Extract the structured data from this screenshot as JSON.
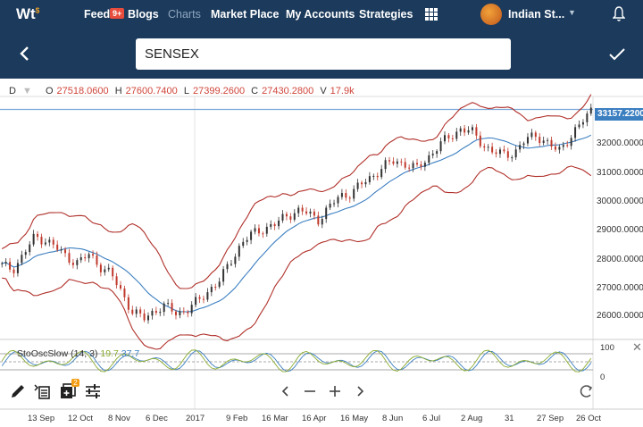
{
  "nav": {
    "logo": "Wt",
    "logo_sup": "$",
    "items": [
      "Feed",
      "Blogs",
      "Charts",
      "Market Place",
      "My Accounts",
      "Strategies"
    ],
    "feed_badge": "9+",
    "account_label": "Indian St...",
    "active": "Charts"
  },
  "search": {
    "value": "SENSEX"
  },
  "ohlc": {
    "interval": "D",
    "o_label": "O",
    "o": "27518.0600",
    "h_label": "H",
    "h": "27600.7400",
    "l_label": "L",
    "l": "27399.2600",
    "c_label": "C",
    "c": "27430.2800",
    "v_label": "V",
    "v": "17.9k"
  },
  "last_price": "33157.2200",
  "oscillator": {
    "name": "StoOscSlow (14, 3)",
    "k": "19.7",
    "d": "37.7",
    "y_ticks": [
      "100",
      "0"
    ]
  },
  "tool_badge": "2",
  "colors": {
    "nav_bg": "#1b3a5c",
    "candle_up": "#333333",
    "candle_down": "#c0392b",
    "band": "#b0302a",
    "ma": "#3c7fc1",
    "stoch_k": "#8aab2f"
  },
  "chart_data": {
    "type": "candlestick",
    "y_ticks": [
      "33157.2200",
      "32000.0000",
      "31000.0000",
      "30000.0000",
      "29000.0000",
      "28000.0000",
      "27000.0000",
      "26000.0000"
    ],
    "x_ticks": [
      "13 Sep",
      "12 Oct",
      "8 Nov",
      "6 Dec",
      "2017",
      "9 Feb",
      "16 Mar",
      "16 Apr",
      "16 May",
      "8 Jun",
      "6 Jul",
      "2 Aug",
      "31",
      "27 Sep",
      "26 Oct"
    ],
    "ylim": [
      25500,
      33600
    ],
    "close_series": [
      27800,
      27700,
      28200,
      28800,
      28700,
      28400,
      28100,
      27900,
      28200,
      27800,
      27500,
      26900,
      26200,
      26000,
      26300,
      26400,
      26200,
      26300,
      26600,
      27000,
      27300,
      28000,
      28600,
      28900,
      29100,
      29200,
      29500,
      29700,
      29600,
      29400,
      29800,
      30200,
      30300,
      30600,
      30900,
      31200,
      31400,
      31300,
      31100,
      31500,
      31900,
      32200,
      32500,
      32400,
      32000,
      31700,
      31600,
      31700,
      32100,
      32300,
      32000,
      31700,
      32200,
      32600,
      33157
    ]
  }
}
